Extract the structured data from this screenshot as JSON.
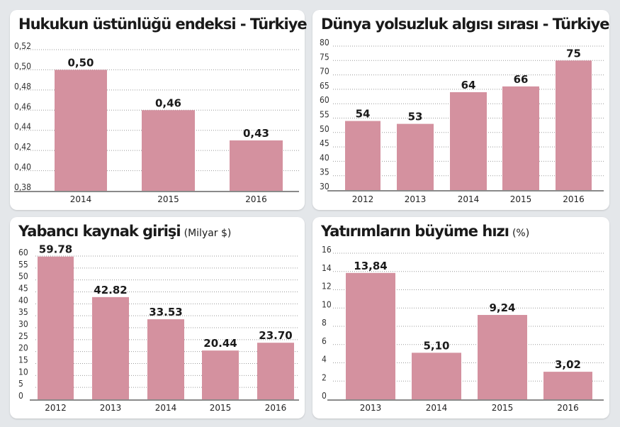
{
  "colors": {
    "bar": "#d4919f",
    "grid": "#999999",
    "axis": "#8a8a8a",
    "background": "#e4e7ea",
    "panel": "#ffffff"
  },
  "chart_data": [
    {
      "type": "bar",
      "title": "Hukukun üstünlüğü endeksi - Türkiye",
      "subtitle": "",
      "categories": [
        "2014",
        "2015",
        "2016"
      ],
      "values": [
        0.5,
        0.46,
        0.43
      ],
      "data_labels": [
        "0,50",
        "0,46",
        "0,43"
      ],
      "yticks": [
        "0,38",
        "0,40",
        "0,42",
        "0,44",
        "0,46",
        "0,48",
        "0,50",
        "0,52"
      ],
      "ylim": [
        0.38,
        0.52
      ],
      "grid": true
    },
    {
      "type": "bar",
      "title": "Dünya yolsuzluk algısı sırası - Türkiye",
      "subtitle": "",
      "categories": [
        "2012",
        "2013",
        "2014",
        "2015",
        "2016"
      ],
      "values": [
        54,
        53,
        64,
        66,
        75
      ],
      "data_labels": [
        "54",
        "53",
        "64",
        "66",
        "75"
      ],
      "yticks": [
        "30",
        "35",
        "40",
        "45",
        "50",
        "55",
        "60",
        "65",
        "70",
        "75",
        "80"
      ],
      "ylim": [
        30,
        80
      ],
      "grid": true
    },
    {
      "type": "bar",
      "title": "Yabancı kaynak girişi",
      "subtitle": "(Milyar $)",
      "categories": [
        "2012",
        "2013",
        "2014",
        "2015",
        "2016"
      ],
      "values": [
        59.78,
        42.82,
        33.53,
        20.44,
        23.7
      ],
      "data_labels": [
        "59.78",
        "42.82",
        "33.53",
        "20.44",
        "23.70"
      ],
      "yticks": [
        "0",
        "5",
        "10",
        "15",
        "20",
        "25",
        "30",
        "35",
        "40",
        "45",
        "50",
        "55",
        "60"
      ],
      "ylim": [
        0,
        60
      ],
      "grid": true
    },
    {
      "type": "bar",
      "title": "Yatırımların büyüme hızı",
      "subtitle": "(%)",
      "categories": [
        "2013",
        "2014",
        "2015",
        "2016"
      ],
      "values": [
        13.84,
        5.1,
        9.24,
        3.02
      ],
      "data_labels": [
        "13,84",
        "5,10",
        "9,24",
        "3,02"
      ],
      "yticks": [
        "0",
        "2",
        "4",
        "6",
        "8",
        "10",
        "12",
        "14",
        "16"
      ],
      "ylim": [
        0,
        16
      ],
      "grid": true
    }
  ]
}
